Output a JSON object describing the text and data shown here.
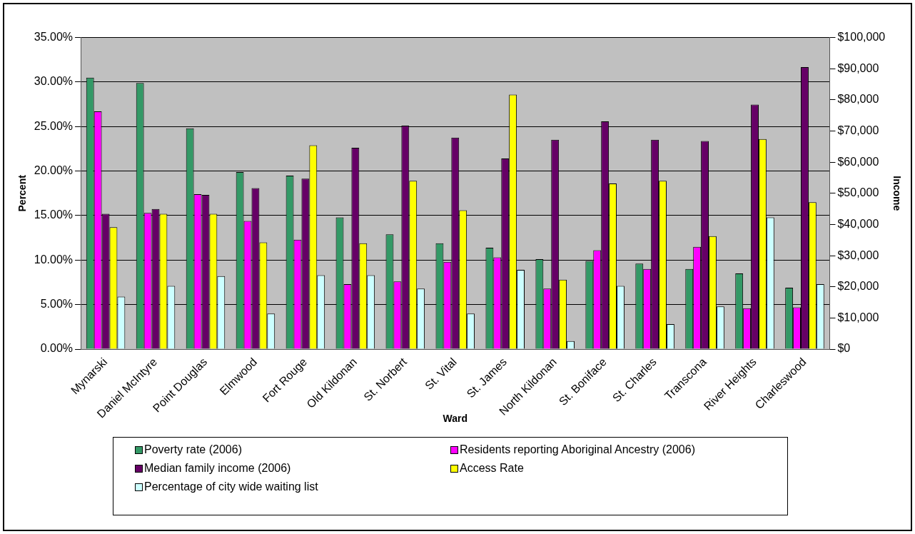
{
  "chart_data": {
    "type": "bar",
    "xlabel": "Ward",
    "ylabel": "Percent",
    "y2label": "Income",
    "categories": [
      "Mynarski",
      "Daniel McIntyre",
      "Point Douglas",
      "Elmwood",
      "Fort Rouge",
      "Old Kildonan",
      "St. Norbert",
      "St. Vital",
      "St. James",
      "North Kildonan",
      "St. Boniface",
      "St. Charles",
      "Transcona",
      "River Heights",
      "Charleswood"
    ],
    "series": [
      {
        "name": "Poverty rate (2006)",
        "color": "#339966",
        "values": [
          30.5,
          29.9,
          24.8,
          19.9,
          19.5,
          14.8,
          12.9,
          11.9,
          11.4,
          10.1,
          9.9,
          9.6,
          9.0,
          8.5,
          6.9
        ]
      },
      {
        "name": "Residents reporting Aboriginal Ancestry (2006)",
        "color": "#ff00ff",
        "values": [
          26.7,
          15.3,
          17.4,
          14.4,
          12.3,
          7.3,
          7.6,
          9.8,
          10.3,
          6.8,
          11.1,
          9.0,
          11.5,
          4.6,
          4.7
        ]
      },
      {
        "name": "Median family income (2006)",
        "color": "#660066",
        "axis": "y2",
        "values": [
          43400,
          45000,
          49500,
          51700,
          54700,
          64600,
          71700,
          67900,
          61200,
          67200,
          73100,
          67200,
          66800,
          78500,
          90500
        ]
      },
      {
        "name": "Access Rate",
        "color": "#ffff00",
        "values": [
          13.7,
          15.2,
          15.2,
          12.0,
          22.9,
          11.9,
          18.9,
          15.6,
          28.6,
          7.8,
          18.6,
          18.9,
          12.7,
          23.6,
          16.5
        ]
      },
      {
        "name": "Percentage of city wide waiting list",
        "color": "#ccffff",
        "values": [
          5.9,
          7.1,
          8.2,
          4.0,
          8.3,
          8.3,
          6.8,
          4.0,
          8.9,
          0.9,
          7.1,
          2.8,
          4.8,
          14.8,
          7.3
        ]
      }
    ],
    "ylim": [
      0,
      35
    ],
    "yticks": [
      {
        "value": 0,
        "label": "0.00%"
      },
      {
        "value": 5,
        "label": "5.00%"
      },
      {
        "value": 10,
        "label": "10.00%"
      },
      {
        "value": 15,
        "label": "15.00%"
      },
      {
        "value": 20,
        "label": "20.00%"
      },
      {
        "value": 25,
        "label": "25.00%"
      },
      {
        "value": 30,
        "label": "30.00%"
      },
      {
        "value": 35,
        "label": "35.00%"
      }
    ],
    "y2lim": [
      0,
      100000
    ],
    "y2ticks": [
      {
        "value": 0,
        "label": "$0"
      },
      {
        "value": 10000,
        "label": "$10,000"
      },
      {
        "value": 20000,
        "label": "$20,000"
      },
      {
        "value": 30000,
        "label": "$30,000"
      },
      {
        "value": 40000,
        "label": "$40,000"
      },
      {
        "value": 50000,
        "label": "$50,000"
      },
      {
        "value": 60000,
        "label": "$60,000"
      },
      {
        "value": 70000,
        "label": "$70,000"
      },
      {
        "value": 80000,
        "label": "$80,000"
      },
      {
        "value": 90000,
        "label": "$90,000"
      },
      {
        "value": 100000,
        "label": "$100,000"
      }
    ],
    "grid": "y",
    "legend": "bottom"
  }
}
